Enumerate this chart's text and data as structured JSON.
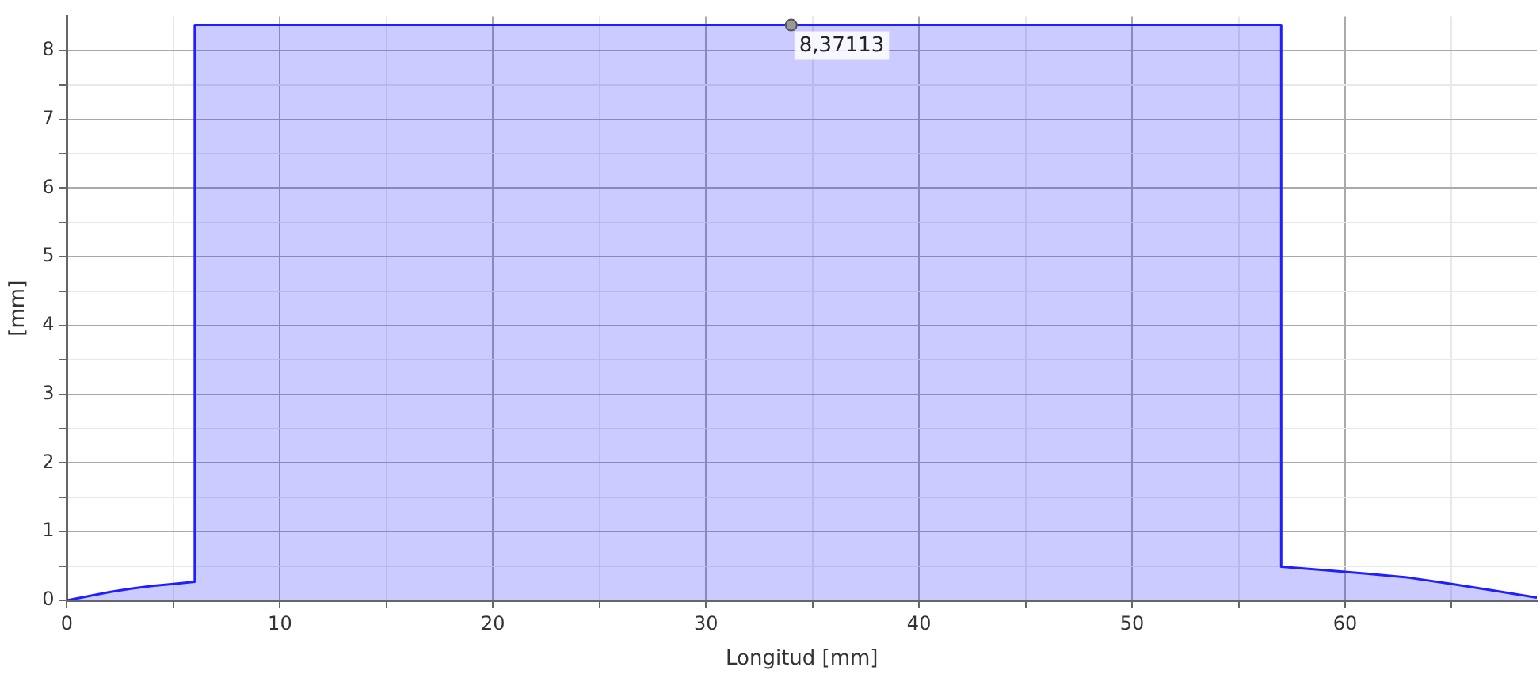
{
  "chart_data": {
    "type": "area",
    "xlabel": "Longitud [mm]",
    "ylabel": "[mm]",
    "x": [
      0,
      1,
      2,
      3,
      4,
      5,
      6,
      6,
      57,
      57,
      59,
      61,
      63,
      65,
      67,
      69
    ],
    "series": [
      {
        "color": "#2020ff",
        "values": [
          0,
          0.06,
          0.12,
          0.17,
          0.21,
          0.24,
          0.27,
          8.37113,
          8.37113,
          0.49,
          0.44,
          0.39,
          0.33,
          0.24,
          0.14,
          0.04
        ]
      }
    ],
    "xlim": [
      0,
      69
    ],
    "ylim": [
      0,
      8.5
    ],
    "xticks": [
      0,
      {
        "value": 5,
        "label": null
      },
      10,
      {
        "value": 15,
        "label": null
      },
      20,
      {
        "value": 25,
        "label": null
      },
      30,
      {
        "value": 35,
        "label": null
      },
      40,
      {
        "value": 45,
        "label": null
      },
      50,
      {
        "value": 55,
        "label": null
      },
      60,
      {
        "value": 65,
        "label": null
      }
    ],
    "yticks": [
      0,
      {
        "value": 0.5,
        "label": null
      },
      1,
      {
        "value": 1.5,
        "label": null
      },
      2,
      {
        "value": 2.5,
        "label": null
      },
      3,
      {
        "value": 3.5,
        "label": null
      },
      4,
      {
        "value": 4.5,
        "label": null
      },
      5,
      {
        "value": 5.5,
        "label": null
      },
      6,
      {
        "value": 6.5,
        "label": null
      },
      7,
      {
        "value": 7.5,
        "label": null
      },
      8
    ],
    "grid": true,
    "legend": false,
    "annotations": [
      {
        "text": "8,37113",
        "x": 34,
        "y": 8.37113
      }
    ]
  }
}
